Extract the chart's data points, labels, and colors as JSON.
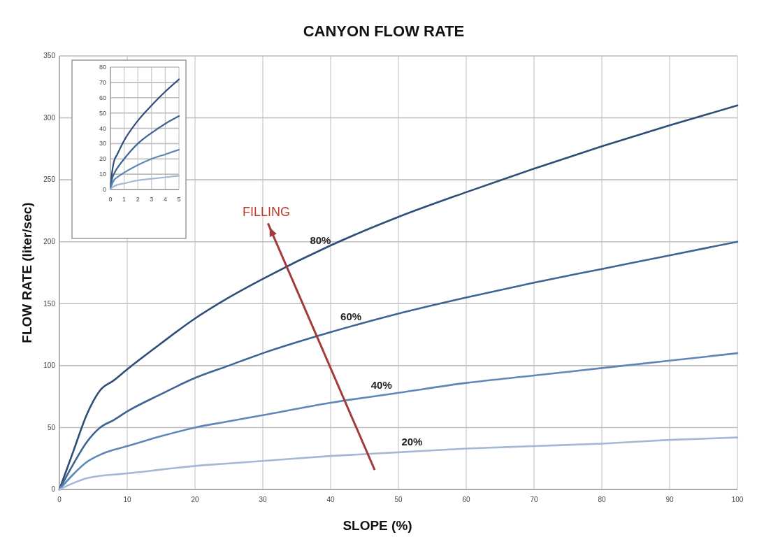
{
  "chart_data": [
    {
      "type": "line",
      "title": "CANYON FLOW RATE",
      "xlabel": "SLOPE (%)",
      "ylabel": "FLOW RATE (liter/sec)",
      "x": [
        0,
        2,
        4,
        6,
        8,
        10,
        15,
        20,
        25,
        30,
        40,
        50,
        60,
        70,
        80,
        90,
        100
      ],
      "xlim": [
        0,
        100
      ],
      "xticks": [
        0,
        10,
        20,
        30,
        40,
        50,
        60,
        70,
        80,
        90,
        100
      ],
      "ylim": [
        0,
        350
      ],
      "yticks": [
        0,
        50,
        100,
        150,
        200,
        250,
        300,
        350
      ],
      "grid": true,
      "marker": "none",
      "annotations": [
        "FILLING"
      ],
      "series": [
        {
          "name": "80%",
          "color": "#2e4e78",
          "values": [
            0,
            30,
            60,
            80,
            88,
            97,
            118,
            138,
            155,
            170,
            197,
            220,
            240,
            259,
            277,
            294,
            310
          ]
        },
        {
          "name": "60%",
          "color": "#3d6594",
          "values": [
            0,
            20,
            38,
            50,
            56,
            63,
            77,
            90,
            100,
            110,
            127,
            142,
            155,
            167,
            178,
            189,
            200
          ]
        },
        {
          "name": "40%",
          "color": "#5e87b8",
          "values": [
            0,
            12,
            22,
            28,
            32,
            35,
            43,
            50,
            55,
            60,
            70,
            78,
            86,
            92,
            98,
            104,
            110
          ]
        },
        {
          "name": "20%",
          "color": "#a3b8d4",
          "values": [
            0,
            5,
            9,
            11,
            12,
            13,
            16,
            19,
            21,
            23,
            27,
            30,
            33,
            35,
            37,
            40,
            42
          ]
        }
      ]
    },
    {
      "type": "line",
      "x": [
        0,
        0.1,
        0.25,
        0.5,
        1,
        2,
        3,
        4,
        5
      ],
      "xlim": [
        0,
        5
      ],
      "xticks": [
        0,
        1,
        2,
        3,
        4,
        5
      ],
      "ylim": [
        0,
        80
      ],
      "yticks": [
        0,
        10,
        20,
        30,
        40,
        50,
        60,
        70,
        80
      ],
      "grid": true,
      "marker": "none",
      "series": [
        {
          "color": "#2e4e78",
          "values": [
            0,
            10,
            18,
            23,
            32,
            45,
            55,
            64,
            72
          ]
        },
        {
          "color": "#3d6594",
          "values": [
            0,
            6,
            10,
            14,
            20,
            30,
            37,
            43,
            48
          ]
        },
        {
          "color": "#5e87b8",
          "values": [
            0,
            3,
            6,
            8,
            11,
            16,
            20,
            23,
            26
          ]
        },
        {
          "color": "#a3b8d4",
          "values": [
            0,
            1,
            2,
            3,
            4,
            6,
            7,
            8,
            9
          ]
        }
      ]
    }
  ]
}
